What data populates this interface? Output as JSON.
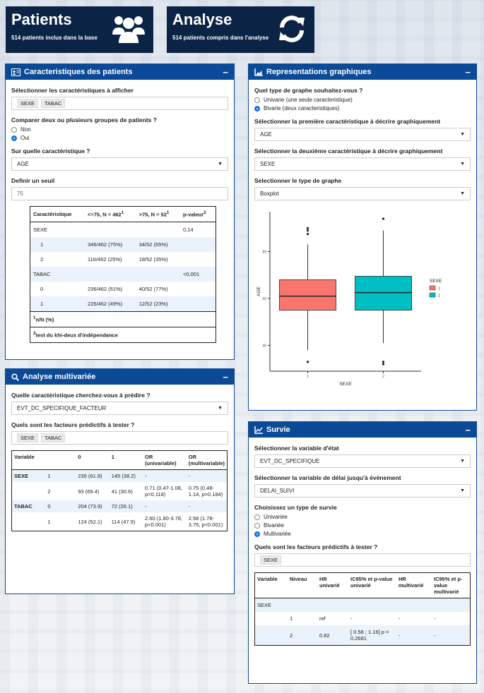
{
  "value_boxes": {
    "patients": {
      "title": "Patients",
      "subtitle": "514 patients inclus dans la base",
      "icon": "users-icon"
    },
    "analyse": {
      "title": "Analyse",
      "subtitle": "514 patients compris dans l'analyse",
      "icon": "sync-icon"
    }
  },
  "characteristics": {
    "title": "Caracteristiques des patients",
    "select_label": "Sélectionner les caractéristiques à afficher",
    "selected_tags": [
      "SEXE",
      "TABAC"
    ],
    "compare_label": "Comparer deux ou plusieurs groupes de patients ?",
    "compare_options": [
      "Non",
      "Oui"
    ],
    "compare_selected": "Oui",
    "which_label": "Sur quelle caractéristique ?",
    "which_value": "AGE",
    "threshold_label": "Definir un seuil",
    "threshold_value": "75",
    "table": {
      "headers": [
        "Caractéristique",
        "<=75, N = 462",
        ">75, N = 52",
        "p-valeur"
      ],
      "header_sup": [
        "",
        "1",
        "1",
        "2"
      ],
      "rows": [
        [
          "SEXE",
          "",
          "",
          "0,14"
        ],
        [
          "1",
          "346/462 (75%)",
          "34/52 (65%)",
          ""
        ],
        [
          "2",
          "116/462 (25%)",
          "18/52 (35%)",
          ""
        ],
        [
          "TABAC",
          "",
          "",
          "<0,001"
        ],
        [
          "0",
          "236/462 (51%)",
          "40/52 (77%)",
          ""
        ],
        [
          "1",
          "226/462 (49%)",
          "12/52 (23%)",
          ""
        ]
      ],
      "note1_sup": "1",
      "note1": "n/N (%)",
      "note2_sup": "2",
      "note2": "test du khi-deux d'indépendance"
    }
  },
  "graphs": {
    "title": "Representations graphiques",
    "type_label": "Quel type de graphe souhaitez-vous ?",
    "type_options": [
      "Univarie (une seule caracteristique)",
      "Bivarie (deux caracteristiques)"
    ],
    "type_selected": "Bivarie (deux caracteristiques)",
    "first_label": "Sélectionner la première caractéristique à décrire graphiquement",
    "first_value": "AGE",
    "second_label": "Sélectionner la deuxième caractéristique à décrire graphiquement",
    "second_value": "SEXE",
    "graph_type_label": "Selectionner le type de graphe",
    "graph_type_value": "Boxplot"
  },
  "chart_data": {
    "type": "boxplot",
    "xlabel": "SEXE",
    "ylabel": "AGE",
    "categories": [
      "1",
      "2"
    ],
    "yticks": [
      40,
      60,
      80
    ],
    "ylim": [
      29,
      97
    ],
    "legend_title": "SEXE",
    "legend_position": "right",
    "grid": false,
    "series": [
      {
        "name": "1",
        "color": "#f8766d",
        "q1": 55,
        "median": 61,
        "q3": 68,
        "whisker_low": 38,
        "whisker_high": 83,
        "outliers": [
          33,
          87.5,
          89,
          90
        ]
      },
      {
        "name": "2",
        "color": "#00bfc4",
        "q1": 55,
        "median": 62.5,
        "q3": 69.5,
        "whisker_low": 41,
        "whisker_high": 89,
        "outliers": [
          32,
          33,
          94
        ]
      }
    ]
  },
  "multivariate": {
    "title": "Analyse multivariée",
    "predict_label": "Quelle caractéristique cherchez-vous à prédire ?",
    "predict_value": "EVT_DC_SPECIFIQUE_FACTEUR",
    "factors_label": "Quels sont les facteurs prédictifs à tester ?",
    "factors_tags": [
      "SEXE",
      "TABAC"
    ],
    "table": {
      "headers": [
        "Variable",
        "",
        "0",
        "1",
        "OR (univariable)",
        "OR (multivariable)"
      ],
      "rows": [
        [
          "SEXE",
          "1",
          "235 (61.8)",
          "145 (38.2)",
          "-",
          "-"
        ],
        [
          "",
          "2",
          "93 (69.4)",
          "41 (30.6)",
          "0.71 (0.47-1.08, p=0.118)",
          "0.75 (0.48-1.14, p=0.184)"
        ],
        [
          "TABAC",
          "0",
          "204 (73.9)",
          "72 (26.1)",
          "-",
          "-"
        ],
        [
          "",
          "1",
          "124 (52.1)",
          "114 (47.9)",
          "2.60 (1.80-3.78, p<0.001)",
          "2.58 (1.78-3.75, p<0.001)"
        ]
      ]
    }
  },
  "survival": {
    "title": "Survie",
    "state_label": "Sélectionner la variable d'état",
    "state_value": "EVT_DC_SPECIFIQUE",
    "delay_label": "Sélectionner la variable de délai jusqu'à évènement",
    "delay_value": "DELAI_SUIVI",
    "type_label": "Choisissez un type de survie",
    "type_options": [
      "Univariée",
      "Bivariée",
      "Multivariée"
    ],
    "type_selected": "Multivariée",
    "factors_label": "Quels sont les facteurs prédictifs à tester ?",
    "factors_tags": [
      "SEXE"
    ],
    "table": {
      "headers": [
        "Variable",
        "Niveau",
        "HR univarié",
        "IC95% et p-value univarié",
        "HR multivarié",
        "IC95% et p-value multivarié"
      ],
      "rows": [
        [
          "SEXE",
          "",
          "",
          "",
          "",
          ""
        ],
        [
          "",
          "1",
          "ref",
          "-",
          "-",
          "-"
        ],
        [
          "",
          "2",
          "0.82",
          "[ 0.58 ; 1.16] p = 0.2681",
          "-",
          "-"
        ]
      ]
    }
  }
}
